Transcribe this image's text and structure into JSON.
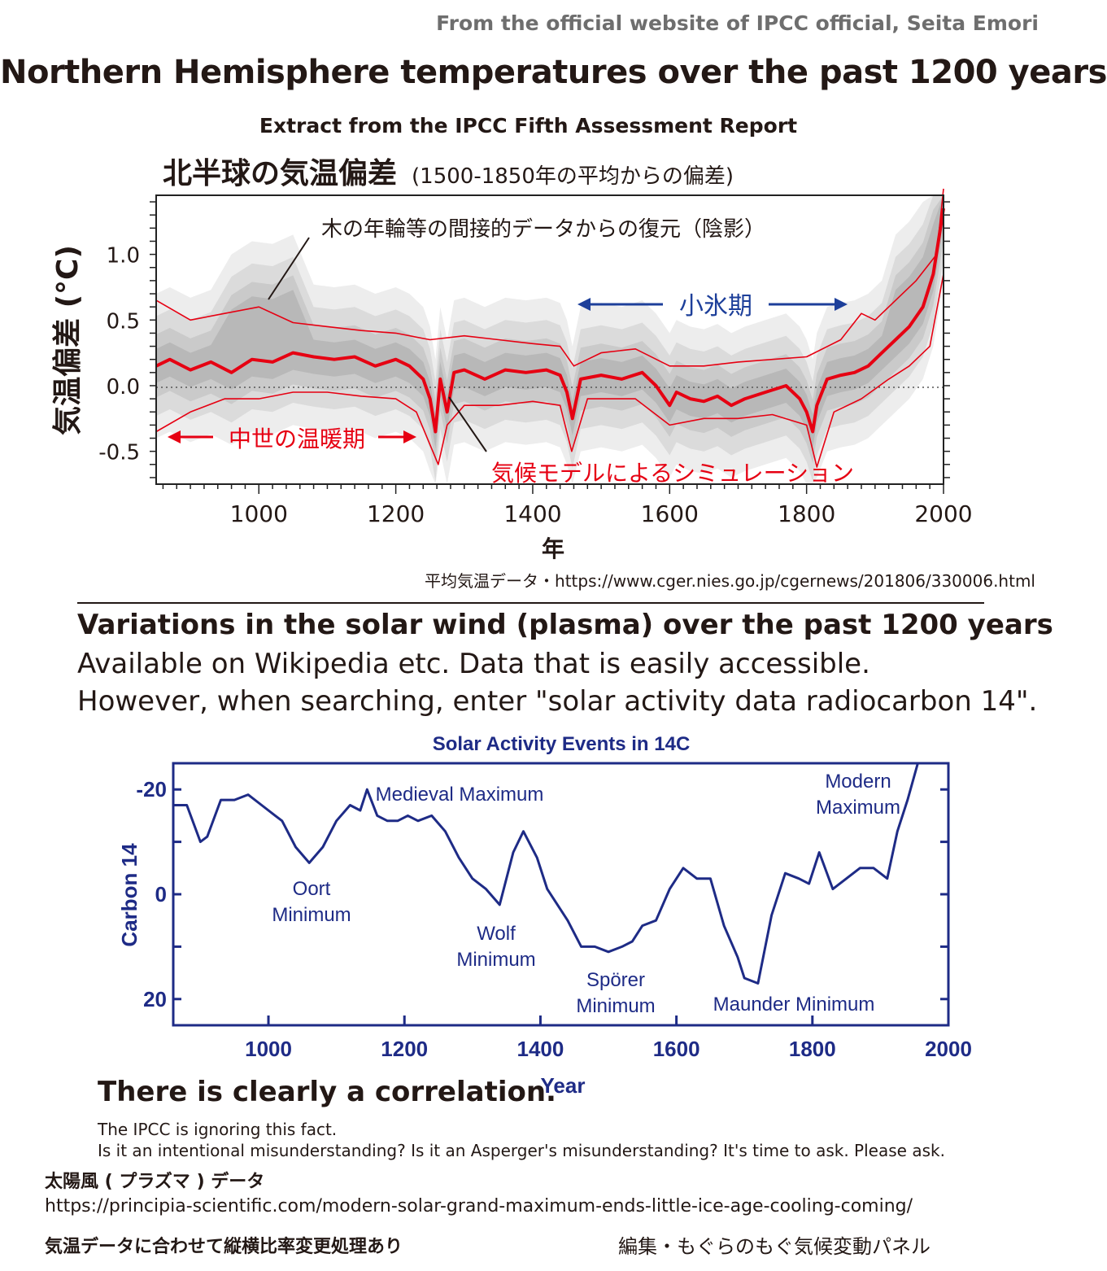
{
  "header": {
    "credit": "From the official website of IPCC official, Seita Emori",
    "title": "Northern Hemisphere temperatures over the past 1200 years",
    "subtitle": "Extract from the IPCC Fifth Assessment Report",
    "jp_title": "北半球の気温偏差",
    "jp_title_note": "(1500-1850年の平均からの偏差)"
  },
  "temp_source": "平均気温データ・https://www.cger.nies.go.jp/cgernews/201806/330006.html",
  "solar_section": {
    "title": "Variations in the solar wind (plasma) over the past 1200 years",
    "line1": "Available on Wikipedia etc. Data that is easily accessible.",
    "line2": "However, when searching, enter \"solar activity data radiocarbon 14\"."
  },
  "footer": {
    "conclusion": "There is clearly a correlation.",
    "note1": "The IPCC is ignoring this fact.",
    "note2": "Is it an intentional misunderstanding? Is it an Asperger's misunderstanding? It's time to ask. Please ask.",
    "data_label": "太陽風 ( プラズマ ) データ",
    "data_url": "https://principia-scientific.com/modern-solar-grand-maximum-ends-little-ice-age-cooling-coming/",
    "adjust_note": "気温データに合わせて縦横比率変更処理あり",
    "editor": "編集・もぐらのもぐ気候変動パネル"
  },
  "colors": {
    "model_red": "#e60012",
    "arrow_blue": "#1d3f9a",
    "solar_navy": "#1e2b86",
    "shading": "#8c8c8c"
  },
  "chart_data": [
    {
      "type": "line",
      "xlabel": "年",
      "ylabel": "気温偏差 (°C)",
      "xlim": [
        850,
        2000
      ],
      "ylim": [
        -0.75,
        1.45
      ],
      "xticks": [
        1000,
        1200,
        1400,
        1600,
        1800,
        2000
      ],
      "yticks": [
        -0.5,
        0.0,
        0.5,
        1.0
      ],
      "ytick_labels": [
        "-0.5",
        "0.0",
        "0.5",
        "1.0"
      ],
      "zero_line": "dotted",
      "annotations": {
        "proxy": "木の年輪等の間接的データからの復元（陰影）",
        "little_ice_age": "小氷期",
        "medieval_warm": "中世の温暖期",
        "model": "気候モデルによるシミュレーション"
      },
      "series": [
        {
          "x": [
            850,
            870,
            900,
            930,
            960,
            990,
            1020,
            1050,
            1080,
            1110,
            1140,
            1170,
            1200,
            1220,
            1240,
            1250,
            1258,
            1265,
            1275,
            1285,
            1300,
            1330,
            1360,
            1390,
            1420,
            1440,
            1450,
            1458,
            1470,
            1500,
            1530,
            1560,
            1580,
            1600,
            1610,
            1630,
            1650,
            1670,
            1690,
            1710,
            1740,
            1770,
            1790,
            1800,
            1809,
            1815,
            1830,
            1850,
            1870,
            1890,
            1910,
            1930,
            1950,
            1970,
            1985,
            2000
          ],
          "y": [
            0.15,
            0.2,
            0.12,
            0.18,
            0.1,
            0.2,
            0.18,
            0.25,
            0.22,
            0.2,
            0.22,
            0.15,
            0.2,
            0.15,
            0.05,
            -0.1,
            -0.35,
            0.05,
            -0.2,
            0.1,
            0.12,
            0.05,
            0.12,
            0.1,
            0.12,
            0.08,
            -0.05,
            -0.25,
            0.05,
            0.08,
            0.05,
            0.1,
            0.0,
            -0.15,
            -0.05,
            -0.1,
            -0.12,
            -0.08,
            -0.15,
            -0.1,
            -0.05,
            0.0,
            -0.1,
            -0.2,
            -0.35,
            -0.15,
            0.05,
            0.08,
            0.1,
            0.15,
            0.25,
            0.35,
            0.45,
            0.6,
            0.85,
            1.35
          ]
        },
        {
          "x": [
            850,
            900,
            950,
            1000,
            1050,
            1100,
            1150,
            1200,
            1250,
            1300,
            1350,
            1400,
            1440,
            1460,
            1500,
            1550,
            1600,
            1650,
            1700,
            1750,
            1800,
            1850,
            1880,
            1900,
            1930,
            1960,
            1990,
            2000
          ],
          "y": [
            0.65,
            0.5,
            0.55,
            0.6,
            0.48,
            0.45,
            0.42,
            0.4,
            0.35,
            0.38,
            0.35,
            0.32,
            0.3,
            0.15,
            0.25,
            0.28,
            0.15,
            0.15,
            0.18,
            0.2,
            0.22,
            0.35,
            0.55,
            0.5,
            0.65,
            0.8,
            1.0,
            1.5
          ]
        },
        {
          "x": [
            850,
            900,
            950,
            1000,
            1050,
            1100,
            1150,
            1200,
            1230,
            1250,
            1262,
            1275,
            1300,
            1350,
            1400,
            1440,
            1457,
            1480,
            1550,
            1600,
            1650,
            1700,
            1750,
            1800,
            1815,
            1840,
            1880,
            1920,
            1950,
            1980,
            2000
          ],
          "y": [
            -0.35,
            -0.2,
            -0.1,
            -0.1,
            -0.05,
            -0.05,
            -0.08,
            -0.1,
            -0.2,
            -0.45,
            -0.6,
            -0.3,
            -0.15,
            -0.15,
            -0.12,
            -0.15,
            -0.5,
            -0.1,
            -0.1,
            -0.3,
            -0.25,
            -0.25,
            -0.22,
            -0.3,
            -0.62,
            -0.2,
            -0.1,
            0.05,
            0.15,
            0.3,
            0.85
          ]
        }
      ]
    },
    {
      "type": "line",
      "title": "Solar Activity Events in 14C",
      "xlabel": "Year",
      "ylabel": "Carbon 14",
      "xlim": [
        860,
        2000
      ],
      "ylim": [
        -25,
        25
      ],
      "y_inverted": true,
      "xticks": [
        1000,
        1200,
        1400,
        1600,
        1800,
        2000
      ],
      "yticks": [
        -20,
        0,
        20
      ],
      "annotations": [
        {
          "label": "Medieval Maximum",
          "x": 1200,
          "y": -20
        },
        {
          "label": "Oort Minimum",
          "x": 1060,
          "y": 4
        },
        {
          "label": "Wolf Minimum",
          "x": 1340,
          "y": 8
        },
        {
          "label": "Spörer Minimum",
          "x": 1500,
          "y": 16
        },
        {
          "label": "Maunder Minimum",
          "x": 1700,
          "y": 20
        },
        {
          "label": "Modern Maximum",
          "x": 1920,
          "y": -20
        }
      ],
      "series": [
        {
          "x": [
            860,
            880,
            900,
            910,
            930,
            950,
            970,
            990,
            1010,
            1020,
            1040,
            1060,
            1080,
            1100,
            1120,
            1135,
            1145,
            1160,
            1175,
            1190,
            1205,
            1220,
            1240,
            1260,
            1280,
            1300,
            1320,
            1340,
            1360,
            1375,
            1395,
            1410,
            1440,
            1460,
            1480,
            1500,
            1520,
            1535,
            1550,
            1570,
            1590,
            1610,
            1630,
            1650,
            1670,
            1690,
            1700,
            1720,
            1740,
            1760,
            1780,
            1795,
            1810,
            1830,
            1850,
            1870,
            1890,
            1910,
            1925,
            1940,
            1955
          ],
          "y": [
            -17,
            -17,
            -10,
            -11,
            -18,
            -18,
            -19,
            -17,
            -15,
            -14,
            -9,
            -6,
            -9,
            -14,
            -17,
            -16,
            -20,
            -15,
            -14,
            -14,
            -15,
            -14,
            -15,
            -12,
            -7,
            -3,
            -1,
            2,
            -8,
            -12,
            -7,
            -1,
            5,
            10,
            10,
            11,
            10,
            9,
            6,
            5,
            -1,
            -5,
            -3,
            -3,
            6,
            12,
            16,
            17,
            4,
            -4,
            -3,
            -2,
            -8,
            -1,
            -3,
            -5,
            -5,
            -3,
            -12,
            -18,
            -25
          ]
        }
      ]
    }
  ]
}
